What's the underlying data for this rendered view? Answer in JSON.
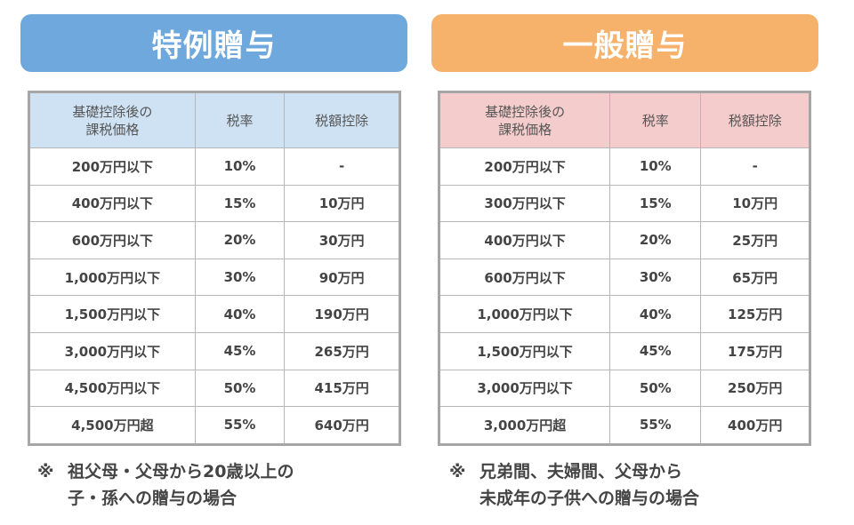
{
  "left": {
    "title": "特例贈与",
    "headers": [
      "基礎控除後の\n課税価格",
      "税率",
      "税額控除"
    ],
    "header_lines": [
      "基礎控除後の",
      "課税価格"
    ],
    "rows": [
      [
        "200万円以下",
        "10%",
        "-"
      ],
      [
        "400万円以下",
        "15%",
        "10万円"
      ],
      [
        "600万円以下",
        "20%",
        "30万円"
      ],
      [
        "1,000万円以下",
        "30%",
        "90万円"
      ],
      [
        "1,500万円以下",
        "40%",
        "190万円"
      ],
      [
        "3,000万円以下",
        "45%",
        "265万円"
      ],
      [
        "4,500万円以下",
        "50%",
        "415万円"
      ],
      [
        "4,500万円超",
        "55%",
        "640万円"
      ]
    ],
    "note_mark": "※",
    "note_lines": [
      "祖父母・父母から20歳以上の",
      "子・孫への贈与の場合"
    ],
    "color": "#6fa8dc"
  },
  "right": {
    "title": "一般贈与",
    "headers": [
      "基礎控除後の\n課税価格",
      "税率",
      "税額控除"
    ],
    "header_lines": [
      "基礎控除後の",
      "課税価格"
    ],
    "rows": [
      [
        "200万円以下",
        "10%",
        "-"
      ],
      [
        "300万円以下",
        "15%",
        "10万円"
      ],
      [
        "400万円以下",
        "20%",
        "25万円"
      ],
      [
        "600万円以下",
        "30%",
        "65万円"
      ],
      [
        "1,000万円以下",
        "40%",
        "125万円"
      ],
      [
        "1,500万円以下",
        "45%",
        "175万円"
      ],
      [
        "3,000万円以下",
        "50%",
        "250万円"
      ],
      [
        "3,000万円超",
        "55%",
        "400万円"
      ]
    ],
    "note_mark": "※",
    "note_lines": [
      "兄弟間、夫婦間、父母から",
      "未成年の子供への贈与の場合"
    ],
    "color": "#f6b26b"
  }
}
